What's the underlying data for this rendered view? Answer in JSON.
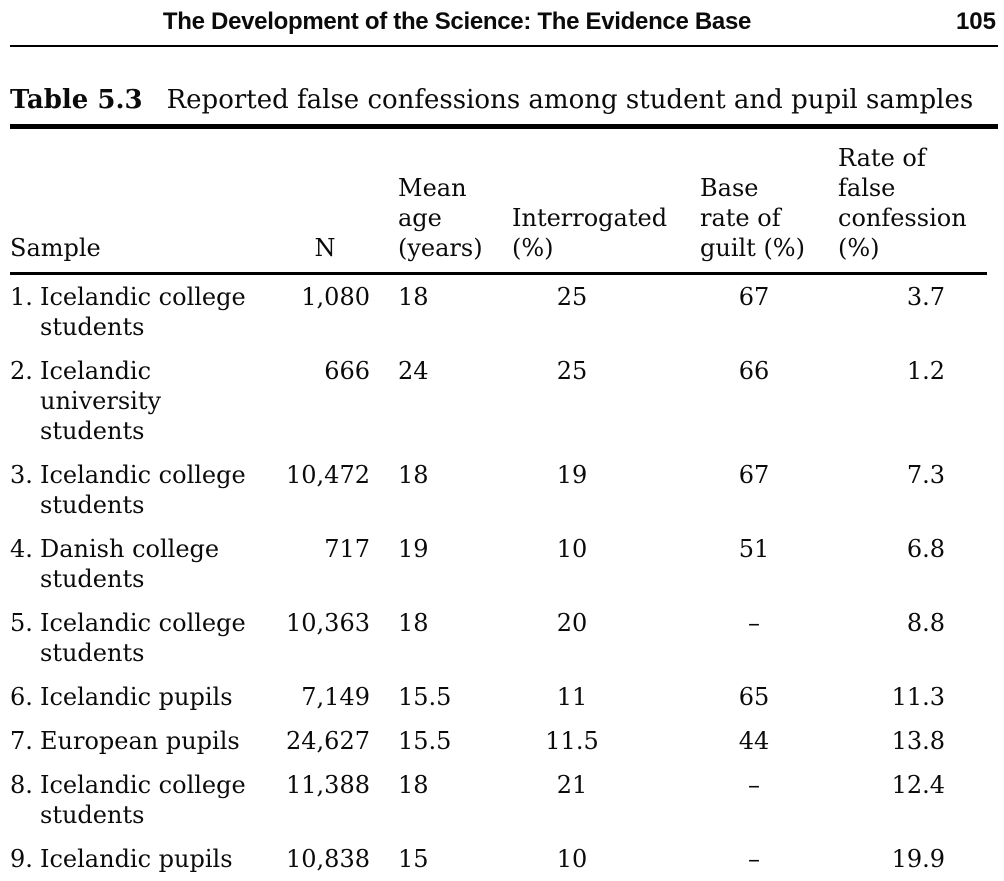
{
  "page": {
    "running_head": "The Development of the Science: The Evidence Base",
    "page_number": "105"
  },
  "table": {
    "label": "Table 5.3",
    "caption": "Reported false confessions among student and pupil samples",
    "columns": [
      "Sample",
      "N",
      "Mean\nage\n(years)",
      "Interrogated\n(%)",
      "Base\nrate of\nguilt (%)",
      "Rate of false\nconfession\n(%)"
    ],
    "rows": [
      {
        "num": "1.",
        "sample": "Icelandic college\nstudents",
        "n": "1,080",
        "mean_age": "18",
        "interrogated_pct": "25",
        "base_rate_guilt_pct": "67",
        "false_confession_pct": "3.7"
      },
      {
        "num": "2.",
        "sample": "Icelandic\nuniversity\nstudents",
        "n": "666",
        "mean_age": "24",
        "interrogated_pct": "25",
        "base_rate_guilt_pct": "66",
        "false_confession_pct": "1.2"
      },
      {
        "num": "3.",
        "sample": "Icelandic college\nstudents",
        "n": "10,472",
        "mean_age": "18",
        "interrogated_pct": "19",
        "base_rate_guilt_pct": "67",
        "false_confession_pct": "7.3"
      },
      {
        "num": "4.",
        "sample": "Danish college\nstudents",
        "n": "717",
        "mean_age": "19",
        "interrogated_pct": "10",
        "base_rate_guilt_pct": "51",
        "false_confession_pct": "6.8"
      },
      {
        "num": "5.",
        "sample": "Icelandic college\nstudents",
        "n": "10,363",
        "mean_age": "18",
        "interrogated_pct": "20",
        "base_rate_guilt_pct": "–",
        "false_confession_pct": "8.8"
      },
      {
        "num": "6.",
        "sample": "Icelandic pupils",
        "n": "7,149",
        "mean_age": "15.5",
        "interrogated_pct": "11",
        "base_rate_guilt_pct": "65",
        "false_confession_pct": "11.3"
      },
      {
        "num": "7.",
        "sample": "European pupils",
        "n": "24,627",
        "mean_age": "15.5",
        "interrogated_pct": "11.5",
        "base_rate_guilt_pct": "44",
        "false_confession_pct": "13.8"
      },
      {
        "num": "8.",
        "sample": "Icelandic college\nstudents",
        "n": "11,388",
        "mean_age": "18",
        "interrogated_pct": "21",
        "base_rate_guilt_pct": "–",
        "false_confession_pct": "12.4"
      },
      {
        "num": "9.",
        "sample": "Icelandic pupils",
        "n": "10,838",
        "mean_age": "15",
        "interrogated_pct": "10",
        "base_rate_guilt_pct": "–",
        "false_confession_pct": "19.9"
      }
    ]
  }
}
